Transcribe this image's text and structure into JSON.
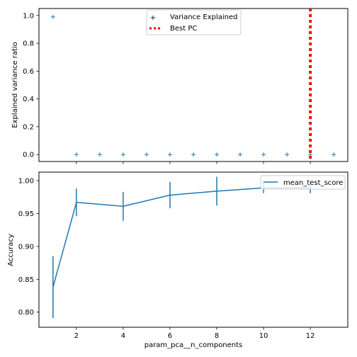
{
  "chart_data": [
    {
      "type": "scatter",
      "ylabel": "Explained variance ratio",
      "xlabel": "",
      "xlim": [
        0.4,
        13.6
      ],
      "ylim": [
        -0.05,
        1.05
      ],
      "xticks": [
        2,
        4,
        6,
        8,
        10,
        12
      ],
      "yticks": [
        0.0,
        0.2,
        0.4,
        0.6,
        0.8,
        1.0
      ],
      "ytick_labels": [
        "0.0",
        "0.2",
        "0.4",
        "0.6",
        "0.8",
        "1.0"
      ],
      "grid": false,
      "legend_position": "top-center",
      "series": [
        {
          "name": "Variance Explained",
          "marker": "+",
          "color": "#1f77b4",
          "x": [
            1,
            2,
            3,
            4,
            5,
            6,
            7,
            8,
            9,
            10,
            11,
            12,
            13
          ],
          "y": [
            0.99,
            0.0,
            0.0,
            0.0,
            0.0,
            0.0,
            0.0,
            0.0,
            0.0,
            0.0,
            0.0,
            0.0,
            0.0
          ]
        }
      ],
      "vline": {
        "name": "Best PC",
        "x": 12,
        "color": "#ff0000",
        "style": "dotted"
      }
    },
    {
      "type": "line",
      "ylabel": "Accuracy",
      "xlabel": "param_pca__n_components",
      "xlim": [
        0.4,
        13.6
      ],
      "ylim": [
        0.777,
        1.013
      ],
      "xticks": [
        2,
        4,
        6,
        8,
        10,
        12
      ],
      "xtick_labels": [
        "2",
        "4",
        "6",
        "8",
        "10",
        "12"
      ],
      "yticks": [
        0.8,
        0.85,
        0.9,
        0.95,
        1.0
      ],
      "ytick_labels": [
        "0.80",
        "0.85",
        "0.90",
        "0.95",
        "1.00"
      ],
      "grid": false,
      "legend_position": "top-right",
      "series": [
        {
          "name": "mean_test_score",
          "color": "#1f77b4",
          "x": [
            1,
            2,
            4,
            6,
            8,
            10,
            12
          ],
          "y": [
            0.838,
            0.967,
            0.961,
            0.978,
            0.984,
            0.989,
            0.989
          ],
          "error": [
            0.047,
            0.021,
            0.022,
            0.02,
            0.022,
            0.008,
            0.008
          ]
        }
      ]
    }
  ]
}
